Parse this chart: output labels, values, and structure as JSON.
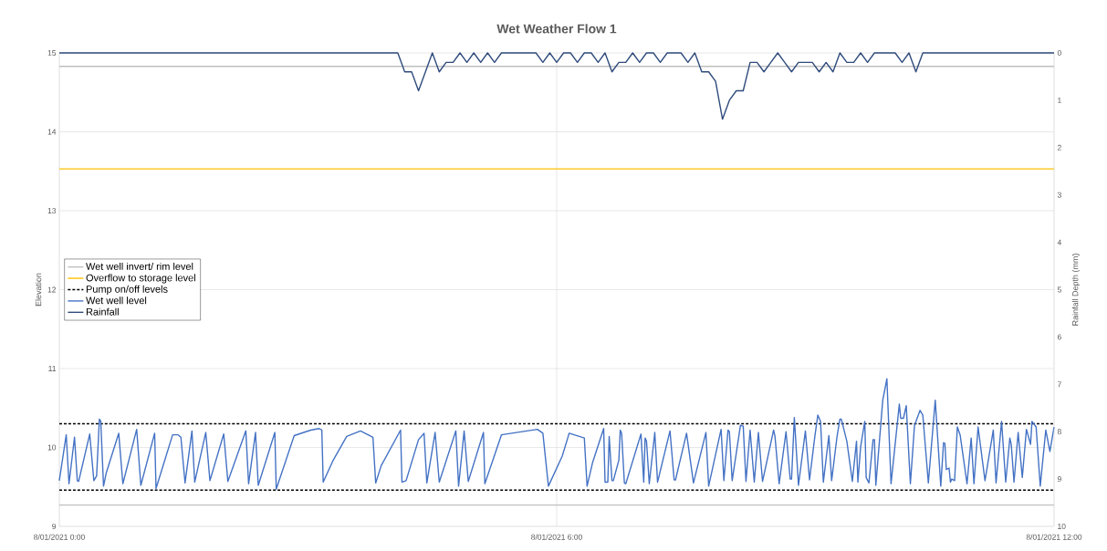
{
  "chart_data": {
    "type": "line",
    "title": "Wet Weather Flow 1",
    "ylabel": "Elevation",
    "y2label": "Rainfall Depth (mm)",
    "xlim": [
      "2021-01-08T00:00",
      "2021-01-08T12:00"
    ],
    "xticks": [
      {
        "value": "2021-01-08T00:00",
        "label": "8/01/2021 0:00"
      },
      {
        "value": "2021-01-08T06:00",
        "label": "8/01/2021 6:00"
      },
      {
        "value": "2021-01-08T12:00",
        "label": "8/01/2021 12:00"
      }
    ],
    "ylim": [
      9,
      15
    ],
    "yticks": [
      9,
      10,
      11,
      12,
      13,
      14,
      15
    ],
    "y2lim": [
      10,
      0
    ],
    "y2ticks": [
      0,
      1,
      2,
      3,
      4,
      5,
      6,
      7,
      8,
      9,
      10
    ],
    "grid": true,
    "legend": "left",
    "series": [
      {
        "name": "Wet well invert/ rim level",
        "color": "#bfbfbf",
        "line_style": "solid",
        "x": [
          "2021-01-08T00:00",
          "2021-01-08T12:00"
        ],
        "values": [
          14.83,
          14.83
        ]
      },
      {
        "color": "#bfbfbf",
        "line_style": "solid",
        "x": [
          "2021-01-08T00:00",
          "2021-01-08T12:00"
        ],
        "values": [
          9.27,
          9.27
        ]
      },
      {
        "name": "Overflow to storage level",
        "color": "#ffc000",
        "line_style": "solid",
        "x": [
          "2021-01-08T00:00",
          "2021-01-08T12:00"
        ],
        "values": [
          13.53,
          13.53
        ]
      },
      {
        "name": "Pump on/off levels",
        "color": "#000000",
        "line_style": "dashed",
        "x": [
          "2021-01-08T00:00",
          "2021-01-08T12:00"
        ],
        "values": [
          10.3,
          10.3
        ]
      },
      {
        "color": "#000000",
        "line_style": "dashed",
        "x": [
          "2021-01-08T00:00",
          "2021-01-08T12:00"
        ],
        "values": [
          9.46,
          9.46
        ]
      },
      {
        "name": "Wet well level",
        "color": "#4472c4",
        "line_style": "solid",
        "x": [
          "2021-01-08T00:00",
          "2021-01-08T00:05",
          "2021-01-08T00:07",
          "2021-01-08T00:11",
          "2021-01-08T00:13",
          "2021-01-08T00:14",
          "2021-01-08T00:22",
          "2021-01-08T00:25",
          "2021-01-08T00:27",
          "2021-01-08T00:29",
          "2021-01-08T00:30",
          "2021-01-08T00:32",
          "2021-01-08T00:34",
          "2021-01-08T00:43",
          "2021-01-08T00:46",
          "2021-01-08T00:56",
          "2021-01-08T00:59",
          "2021-01-08T01:09",
          "2021-01-08T01:10",
          "2021-01-08T01:22",
          "2021-01-08T01:26",
          "2021-01-08T01:28",
          "2021-01-08T01:31",
          "2021-01-08T01:36",
          "2021-01-08T01:38",
          "2021-01-08T01:46",
          "2021-01-08T01:49",
          "2021-01-08T01:59",
          "2021-01-08T02:02",
          "2021-01-08T02:15",
          "2021-01-08T02:17",
          "2021-01-08T02:22",
          "2021-01-08T02:24",
          "2021-01-08T02:36",
          "2021-01-08T02:37",
          "2021-01-08T02:50",
          "2021-01-08T03:02",
          "2021-01-08T03:08",
          "2021-01-08T03:10",
          "2021-01-08T03:11",
          "2021-01-08T03:18",
          "2021-01-08T03:28",
          "2021-01-08T03:38",
          "2021-01-08T03:47",
          "2021-01-08T03:49",
          "2021-01-08T03:53",
          "2021-01-08T04:07",
          "2021-01-08T04:08",
          "2021-01-08T04:11",
          "2021-01-08T04:20",
          "2021-01-08T04:24",
          "2021-01-08T04:26",
          "2021-01-08T04:32",
          "2021-01-08T04:35",
          "2021-01-08T04:47",
          "2021-01-08T04:49",
          "2021-01-08T04:53",
          "2021-01-08T04:56",
          "2021-01-08T05:07",
          "2021-01-08T05:08",
          "2021-01-08T05:20",
          "2021-01-08T05:46",
          "2021-01-08T05:50",
          "2021-01-08T05:54",
          "2021-01-08T06:04",
          "2021-01-08T06:08",
          "2021-01-08T06:09",
          "2021-01-08T06:20",
          "2021-01-08T06:22",
          "2021-01-08T06:26",
          "2021-01-08T06:34",
          "2021-01-08T06:35",
          "2021-01-08T06:37",
          "2021-01-08T06:38",
          "2021-01-08T06:40",
          "2021-01-08T06:41",
          "2021-01-08T06:45",
          "2021-01-08T06:46",
          "2021-01-08T06:47",
          "2021-01-08T06:49",
          "2021-01-08T06:50",
          "2021-01-08T07:01",
          "2021-01-08T07:03",
          "2021-01-08T07:04",
          "2021-01-08T07:05",
          "2021-01-08T07:07",
          "2021-01-08T07:11",
          "2021-01-08T07:13",
          "2021-01-08T07:22",
          "2021-01-08T07:25",
          "2021-01-08T07:26",
          "2021-01-08T07:34",
          "2021-01-08T07:39",
          "2021-01-08T07:48",
          "2021-01-08T07:50",
          "2021-01-08T07:59",
          "2021-01-08T08:01",
          "2021-01-08T08:04",
          "2021-01-08T08:05",
          "2021-01-08T08:07",
          "2021-01-08T08:13",
          "2021-01-08T08:15",
          "2021-01-08T08:17",
          "2021-01-08T08:20",
          "2021-01-08T08:23",
          "2021-01-08T08:26",
          "2021-01-08T08:29",
          "2021-01-08T08:37",
          "2021-01-08T08:38",
          "2021-01-08T08:41",
          "2021-01-08T08:46",
          "2021-01-08T08:49",
          "2021-01-08T08:50",
          "2021-01-08T08:52",
          "2021-01-08T08:55",
          "2021-01-08T09:00",
          "2021-01-08T09:03",
          "2021-01-08T09:07",
          "2021-01-08T09:09",
          "2021-01-08T09:11",
          "2021-01-08T09:13",
          "2021-01-08T09:17",
          "2021-01-08T09:19",
          "2021-01-08T09:23",
          "2021-01-08T09:25",
          "2021-01-08T09:26",
          "2021-01-08T09:30",
          "2021-01-08T09:34",
          "2021-01-08T09:37",
          "2021-01-08T09:38",
          "2021-01-08T09:40",
          "2021-01-08T09:43",
          "2021-01-08T09:44",
          "2021-01-08T09:46",
          "2021-01-08T09:49",
          "2021-01-08T09:50",
          "2021-01-08T09:51",
          "2021-01-08T09:56",
          "2021-01-08T09:59",
          "2021-01-08T10:02",
          "2021-01-08T10:08",
          "2021-01-08T10:09",
          "2021-01-08T10:11",
          "2021-01-08T10:13",
          "2021-01-08T10:16",
          "2021-01-08T10:19",
          "2021-01-08T10:23",
          "2021-01-08T10:25",
          "2021-01-08T10:29",
          "2021-01-08T10:34",
          "2021-01-08T10:38",
          "2021-01-08T10:40",
          "2021-01-08T10:41",
          "2021-01-08T10:42",
          "2021-01-08T10:44",
          "2021-01-08T10:45",
          "2021-01-08T10:46",
          "2021-01-08T10:48",
          "2021-01-08T10:50",
          "2021-01-08T10:52",
          "2021-01-08T10:57",
          "2021-01-08T11:00",
          "2021-01-08T11:02",
          "2021-01-08T11:05",
          "2021-01-08T11:10",
          "2021-01-08T11:16",
          "2021-01-08T11:18",
          "2021-01-08T11:22",
          "2021-01-08T11:25",
          "2021-01-08T11:28",
          "2021-01-08T11:29",
          "2021-01-08T11:31",
          "2021-01-08T11:34",
          "2021-01-08T11:37",
          "2021-01-08T11:40",
          "2021-01-08T11:43",
          "2021-01-08T11:44",
          "2021-01-08T11:47",
          "2021-01-08T11:50",
          "2021-01-08T11:54",
          "2021-01-08T11:57",
          "2021-01-08T12:00"
        ],
        "values": [
          9.58,
          10.16,
          9.54,
          10.13,
          9.58,
          9.57,
          10.17,
          9.58,
          9.64,
          10.36,
          10.33,
          9.51,
          9.68,
          10.18,
          9.54,
          10.23,
          9.52,
          10.18,
          9.48,
          10.16,
          10.16,
          10.13,
          9.55,
          10.21,
          9.56,
          10.19,
          9.58,
          10.17,
          9.57,
          10.21,
          9.54,
          10.19,
          9.52,
          10.19,
          9.47,
          10.15,
          10.22,
          10.24,
          10.22,
          9.56,
          9.83,
          10.14,
          10.21,
          10.13,
          9.55,
          9.77,
          10.22,
          9.56,
          9.58,
          10.1,
          10.18,
          9.55,
          10.19,
          9.56,
          10.21,
          9.51,
          10.21,
          9.57,
          10.19,
          9.54,
          10.16,
          10.23,
          10.18,
          9.51,
          9.89,
          10.12,
          10.18,
          10.12,
          9.51,
          9.81,
          10.24,
          9.56,
          9.56,
          10.14,
          9.58,
          9.58,
          9.84,
          10.22,
          10.18,
          9.55,
          9.54,
          10.17,
          9.56,
          10.12,
          10.08,
          9.54,
          10.19,
          9.56,
          10.21,
          9.59,
          9.59,
          10.18,
          9.55,
          10.19,
          9.51,
          10.23,
          9.58,
          10.22,
          10.2,
          9.58,
          10.28,
          10.27,
          9.57,
          10.22,
          9.56,
          10.19,
          9.57,
          10.22,
          10.14,
          9.54,
          10.2,
          9.6,
          9.6,
          10.38,
          9.52,
          10.21,
          9.59,
          10.16,
          10.41,
          10.33,
          9.56,
          10.15,
          9.58,
          10.15,
          10.36,
          10.36,
          10.08,
          9.57,
          10.08,
          9.56,
          10.01,
          10.33,
          9.62,
          9.55,
          10.1,
          10.1,
          9.52,
          10.6,
          10.87,
          9.54,
          10.55,
          10.37,
          10.37,
          10.53,
          9.54,
          10.28,
          10.47,
          10.41,
          9.55,
          10.6,
          9.51,
          10.06,
          10.05,
          9.72,
          9.74,
          9.56,
          9.6,
          9.58,
          10.26,
          10.16,
          9.54,
          10.12,
          9.54,
          10.26,
          9.58,
          10.22,
          9.55,
          10.33,
          9.56,
          10.12,
          10.04,
          9.56,
          10.19,
          9.62,
          10.23,
          10.04,
          10.33,
          10.26,
          9.51,
          10.22,
          9.95,
          10.26
        ]
      },
      {
        "name": "Rainfall",
        "color": "#2f4b7c",
        "line_style": "solid",
        "axis": "y2",
        "x": [
          "2021-01-08T00:00",
          "2021-01-08T04:05",
          "2021-01-08T04:10",
          "2021-01-08T04:15",
          "2021-01-08T04:20",
          "2021-01-08T04:25",
          "2021-01-08T04:30",
          "2021-01-08T04:35",
          "2021-01-08T04:40",
          "2021-01-08T04:45",
          "2021-01-08T04:50",
          "2021-01-08T04:55",
          "2021-01-08T05:00",
          "2021-01-08T05:05",
          "2021-01-08T05:10",
          "2021-01-08T05:15",
          "2021-01-08T05:20",
          "2021-01-08T05:45",
          "2021-01-08T05:50",
          "2021-01-08T05:55",
          "2021-01-08T06:00",
          "2021-01-08T06:05",
          "2021-01-08T06:10",
          "2021-01-08T06:15",
          "2021-01-08T06:20",
          "2021-01-08T06:25",
          "2021-01-08T06:30",
          "2021-01-08T06:35",
          "2021-01-08T06:40",
          "2021-01-08T06:45",
          "2021-01-08T06:50",
          "2021-01-08T06:55",
          "2021-01-08T07:00",
          "2021-01-08T07:05",
          "2021-01-08T07:10",
          "2021-01-08T07:15",
          "2021-01-08T07:20",
          "2021-01-08T07:30",
          "2021-01-08T07:35",
          "2021-01-08T07:40",
          "2021-01-08T07:45",
          "2021-01-08T07:50",
          "2021-01-08T07:55",
          "2021-01-08T08:00",
          "2021-01-08T08:05",
          "2021-01-08T08:10",
          "2021-01-08T08:15",
          "2021-01-08T08:20",
          "2021-01-08T08:25",
          "2021-01-08T08:30",
          "2021-01-08T08:35",
          "2021-01-08T08:40",
          "2021-01-08T08:45",
          "2021-01-08T08:50",
          "2021-01-08T08:55",
          "2021-01-08T09:05",
          "2021-01-08T09:10",
          "2021-01-08T09:15",
          "2021-01-08T09:20",
          "2021-01-08T09:25",
          "2021-01-08T09:30",
          "2021-01-08T09:35",
          "2021-01-08T09:40",
          "2021-01-08T09:45",
          "2021-01-08T09:50",
          "2021-01-08T10:05",
          "2021-01-08T10:10",
          "2021-01-08T10:15",
          "2021-01-08T10:20",
          "2021-01-08T10:25",
          "2021-01-08T12:00"
        ],
        "values": [
          0,
          0,
          0.4,
          0.4,
          0.8,
          0.4,
          0,
          0.4,
          0.2,
          0.2,
          0,
          0.2,
          0,
          0.2,
          0,
          0.2,
          0,
          0,
          0.2,
          0,
          0.2,
          0,
          0,
          0.2,
          0,
          0,
          0.2,
          0,
          0.4,
          0.2,
          0.2,
          0,
          0.2,
          0,
          0,
          0.2,
          0,
          0,
          0.2,
          0,
          0.4,
          0.4,
          0.6,
          1.4,
          1.0,
          0.8,
          0.8,
          0.2,
          0.2,
          0.4,
          0.2,
          0,
          0.2,
          0.4,
          0.2,
          0.2,
          0.4,
          0.2,
          0.4,
          0,
          0.2,
          0.2,
          0,
          0.2,
          0,
          0,
          0.2,
          0,
          0.4,
          0,
          0
        ]
      }
    ]
  }
}
